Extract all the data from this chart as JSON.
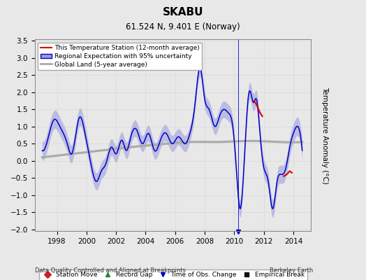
{
  "title": "SKABU",
  "subtitle": "61.524 N, 9.401 E (Norway)",
  "ylabel": "Temperature Anomaly (°C)",
  "footer_left": "Data Quality Controlled and Aligned at Breakpoints",
  "footer_right": "Berkeley Earth",
  "xlim": [
    1996.5,
    2015.2
  ],
  "ylim": [
    -2.05,
    3.55
  ],
  "yticks": [
    -2,
    -1.5,
    -1,
    -0.5,
    0,
    0.5,
    1,
    1.5,
    2,
    2.5,
    3,
    3.5
  ],
  "xticks": [
    1998,
    2000,
    2002,
    2004,
    2006,
    2008,
    2010,
    2012,
    2014
  ],
  "background_color": "#e8e8e8",
  "plot_background": "#e8e8e8",
  "regional_color": "#0000cc",
  "regional_fill_color": "#9999dd",
  "station_color": "#dd0000",
  "global_color": "#aaaaaa",
  "obs_change_color": "#0000cc",
  "legend_labels": [
    "This Temperature Station (12-month average)",
    "Regional Expectation with 95% uncertainty",
    "Global Land (5-year average)"
  ],
  "bottom_legend_labels": [
    "Station Move",
    "Record Gap",
    "Time of Obs. Change",
    "Empirical Break"
  ]
}
